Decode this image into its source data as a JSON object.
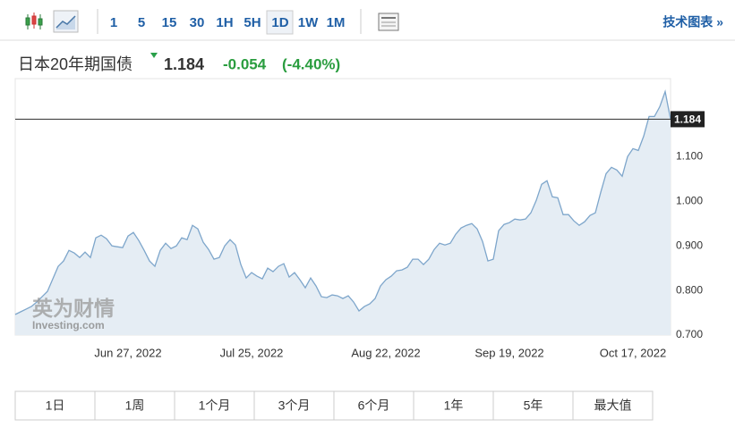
{
  "toolbar": {
    "intervals": [
      "1",
      "5",
      "15",
      "30",
      "1H",
      "5H",
      "1D",
      "1W",
      "1M"
    ],
    "link": "技术图表 »"
  },
  "header": {
    "name": "日本20年期国债",
    "change": "-0.054",
    "change_pct": "(-4.40%)"
  },
  "watermark": {
    "cn": "英为财情",
    "en": "Investing.com"
  },
  "ranges": [
    "1日",
    "1周",
    "1个月",
    "3个月",
    "6个月",
    "1年",
    "5年",
    "最大值"
  ],
  "chart_data": {
    "type": "line",
    "color": "#7ea6cb",
    "fill": "#e5edf4",
    "grid": false,
    "last_price": {
      "value": 1.184,
      "label": "1.184"
    },
    "categories": [
      null,
      null,
      null,
      null,
      null,
      null,
      null,
      null,
      null,
      null,
      null,
      null,
      null,
      null,
      null,
      null,
      null,
      null,
      null,
      null,
      null,
      "Jun 27, 2022",
      null,
      null,
      null,
      null,
      null,
      null,
      null,
      null,
      null,
      null,
      null,
      null,
      null,
      null,
      null,
      null,
      null,
      null,
      null,
      null,
      null,
      null,
      "Jul 25, 2022",
      null,
      null,
      null,
      null,
      null,
      null,
      null,
      null,
      null,
      null,
      null,
      null,
      null,
      null,
      null,
      null,
      null,
      null,
      null,
      null,
      null,
      null,
      null,
      null,
      "Aug 22, 2022",
      null,
      null,
      null,
      null,
      null,
      null,
      null,
      null,
      null,
      null,
      null,
      null,
      null,
      null,
      null,
      null,
      null,
      null,
      null,
      null,
      null,
      null,
      "Sep 19, 2022",
      null,
      null,
      null,
      null,
      null,
      null,
      null,
      null,
      null,
      null,
      null,
      null,
      null,
      null,
      null,
      null,
      null,
      null,
      null,
      null,
      null,
      null,
      "Oct 17, 2022",
      null,
      null,
      null,
      null,
      null,
      null,
      null
    ],
    "values": [
      0.746,
      0.752,
      0.758,
      0.764,
      0.774,
      0.786,
      0.798,
      0.826,
      0.854,
      0.866,
      0.89,
      0.884,
      0.874,
      0.886,
      0.874,
      0.918,
      0.924,
      0.916,
      0.9,
      0.898,
      0.896,
      0.922,
      0.93,
      0.912,
      0.89,
      0.866,
      0.854,
      0.89,
      0.906,
      0.894,
      0.9,
      0.918,
      0.914,
      0.946,
      0.938,
      0.908,
      0.892,
      0.87,
      0.874,
      0.9,
      0.914,
      0.902,
      0.858,
      0.828,
      0.84,
      0.832,
      0.826,
      0.85,
      0.842,
      0.854,
      0.86,
      0.83,
      0.84,
      0.824,
      0.806,
      0.828,
      0.81,
      0.786,
      0.784,
      0.79,
      0.788,
      0.782,
      0.788,
      0.774,
      0.754,
      0.764,
      0.77,
      0.782,
      0.81,
      0.824,
      0.832,
      0.844,
      0.846,
      0.852,
      0.87,
      0.87,
      0.858,
      0.87,
      0.892,
      0.906,
      0.902,
      0.906,
      0.926,
      0.94,
      0.946,
      0.95,
      0.938,
      0.91,
      0.866,
      0.87,
      0.934,
      0.948,
      0.952,
      0.96,
      0.958,
      0.96,
      0.974,
      1.002,
      1.038,
      1.046,
      1.01,
      1.008,
      0.97,
      0.97,
      0.956,
      0.946,
      0.954,
      0.968,
      0.974,
      1.02,
      1.062,
      1.076,
      1.07,
      1.056,
      1.1,
      1.118,
      1.114,
      1.146,
      1.19,
      1.19,
      1.212,
      1.246,
      1.184
    ],
    "ylim": [
      0.7,
      1.275
    ],
    "yticks": [
      {
        "value": 0.7,
        "label": "0.700"
      },
      {
        "value": 0.8,
        "label": "0.800"
      },
      {
        "value": 0.9,
        "label": "0.900"
      },
      {
        "value": 1.0,
        "label": "1.000"
      },
      {
        "value": 1.1,
        "label": "1.100"
      }
    ]
  }
}
